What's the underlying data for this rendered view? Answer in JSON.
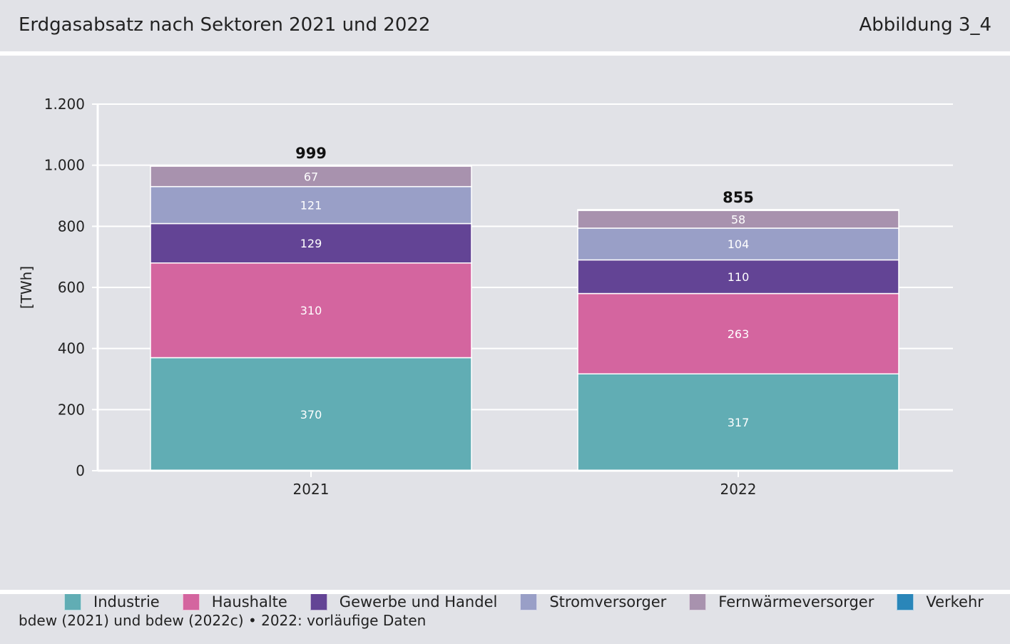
{
  "header": {
    "title": "Erdgasabsatz nach Sektoren 2021 und 2022",
    "figure_number": "Abbildung 3_4"
  },
  "footer": {
    "source": "bdew (2021) und bdew (2022c) • 2022: vorläufige Daten"
  },
  "colors": {
    "Industrie": "#61adb4",
    "Haushalte": "#d4659f",
    "Gewerbe und Handel": "#634495",
    "Stromversorger": "#999fc7",
    "Fernwärmeversorger": "#a892ae",
    "Verkehr": "#2a86b9"
  },
  "chart_data": {
    "type": "bar",
    "stacked": true,
    "categories": [
      "2021",
      "2022"
    ],
    "series": [
      {
        "name": "Industrie",
        "values": [
          370,
          317
        ],
        "labels": [
          "370",
          "317"
        ]
      },
      {
        "name": "Haushalte",
        "values": [
          310,
          263
        ],
        "labels": [
          "310",
          "263"
        ]
      },
      {
        "name": "Gewerbe und Handel",
        "values": [
          129,
          110
        ],
        "labels": [
          "129",
          "110"
        ]
      },
      {
        "name": "Stromversorger",
        "values": [
          121,
          104
        ],
        "labels": [
          "121",
          "104"
        ]
      },
      {
        "name": "Fernwärmeversorger",
        "values": [
          67,
          58
        ],
        "labels": [
          "67",
          "58"
        ]
      },
      {
        "name": "Verkehr",
        "values": [
          2,
          3
        ],
        "labels": [
          "",
          ""
        ]
      }
    ],
    "totals": [
      "999",
      "855"
    ],
    "ylabel": "[TWh]",
    "xlabel": "",
    "ylim": [
      0,
      1200
    ],
    "yticks": [
      0,
      200,
      400,
      600,
      800,
      1000,
      1200
    ],
    "ytick_labels": [
      "0",
      "200",
      "400",
      "600",
      "800",
      "1.000",
      "1.200"
    ],
    "grid": true,
    "legend_position": "bottom"
  }
}
